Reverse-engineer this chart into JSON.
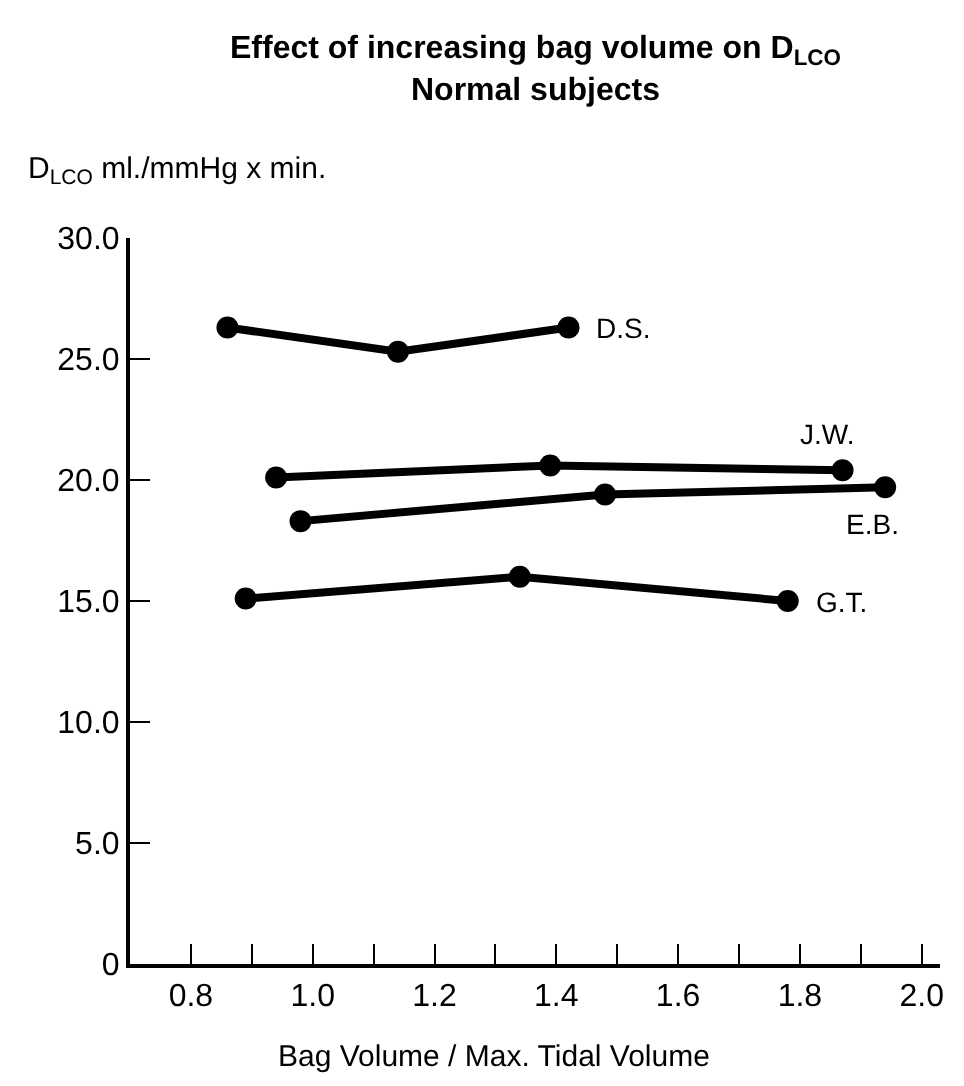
{
  "chart_data": {
    "type": "line",
    "title": "Effect of increasing bag volume on D$_{LCO}$",
    "subtitle": "Normal subjects",
    "xlabel": "Bag Volume / Max. Tidal Volume",
    "ylabel": "D$_{LCO}$ ml./mmHg x min.",
    "series": [
      {
        "name": "D.S.",
        "color": "#000000",
        "x": [
          0.86,
          1.14,
          1.42
        ],
        "values": [
          26.3,
          25.3,
          26.3
        ]
      },
      {
        "name": "J.W.",
        "color": "#000000",
        "x": [
          0.94,
          1.39,
          1.87
        ],
        "values": [
          20.1,
          20.6,
          20.4
        ]
      },
      {
        "name": "E.B.",
        "color": "#000000",
        "x": [
          0.98,
          1.48,
          1.94
        ],
        "values": [
          18.3,
          19.4,
          19.7
        ]
      },
      {
        "name": "G.T.",
        "color": "#000000",
        "x": [
          0.89,
          1.34,
          1.78
        ],
        "values": [
          15.1,
          16.0,
          15.0
        ]
      }
    ],
    "xlim": [
      0.7,
      2.03
    ],
    "xticks": [
      0.8,
      {
        "value": 0.9,
        "label": null
      },
      {
        "value": 1.0,
        "label": "1.0"
      },
      {
        "value": 1.1,
        "label": null
      },
      1.2,
      {
        "value": 1.3,
        "label": null
      },
      1.4,
      {
        "value": 1.5,
        "label": null
      },
      1.6,
      {
        "value": 1.7,
        "label": null
      },
      1.8,
      {
        "value": 1.9,
        "label": null
      },
      {
        "value": 2.0,
        "label": "2.0"
      }
    ],
    "ylim": [
      0,
      30
    ],
    "yticks": [
      0,
      {
        "value": 5,
        "label": "5.0"
      },
      {
        "value": 10,
        "label": "10.0"
      },
      {
        "value": 15,
        "label": "15.0"
      },
      {
        "value": 20,
        "label": "20.0"
      },
      {
        "value": 25,
        "label": "25.0"
      },
      {
        "value": 30,
        "label": "30.0"
      }
    ],
    "grid": false,
    "legend": false,
    "marker": "circle",
    "line_style": "solid"
  }
}
